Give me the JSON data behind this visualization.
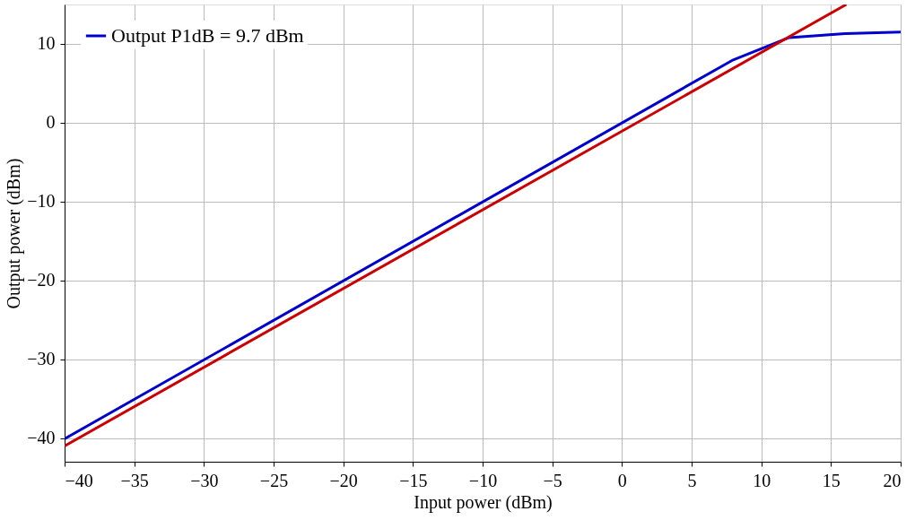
{
  "chart_data": {
    "type": "line",
    "xlabel": "Input power (dBm)",
    "ylabel": "Output power (dBm)",
    "xlim": [
      -40,
      20
    ],
    "ylim": [
      -43,
      15
    ],
    "xticks": [
      -40,
      -35,
      -30,
      -25,
      -20,
      -15,
      -10,
      -5,
      0,
      5,
      10,
      15,
      20
    ],
    "yticks": [
      -40,
      -30,
      -20,
      -10,
      0,
      10
    ],
    "grid": true,
    "legend": "top left",
    "marker": "none",
    "line_style": "solid",
    "series": [
      {
        "name": "Output P1dB = 9.7 dBm",
        "color": "#0000cc",
        "x": [
          -40,
          7.9,
          12,
          16,
          20
        ],
        "values": [
          -40.1,
          7.9,
          10.8,
          11.3,
          11.5
        ]
      },
      {
        "color": "#cc0000",
        "x": [
          -40,
          16.1
        ],
        "values": [
          -41,
          15
        ]
      }
    ]
  }
}
